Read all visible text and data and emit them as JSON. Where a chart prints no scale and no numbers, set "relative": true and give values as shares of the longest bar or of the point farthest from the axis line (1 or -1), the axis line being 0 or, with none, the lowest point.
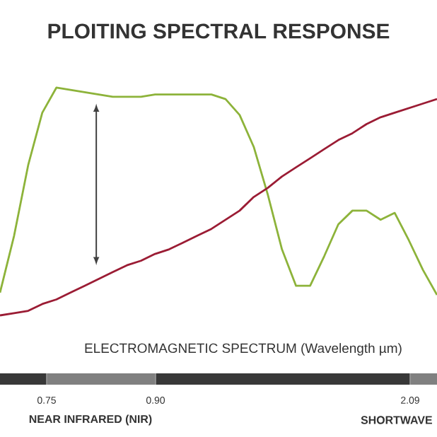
{
  "chart_data": {
    "type": "line",
    "relative": true,
    "title": "PLOITING SPECTRAL RESPONSE",
    "xlabel": "ELECTROMAGNETIC SPECTRUM (Wavelength µm)",
    "annotations": [
      "0.75",
      "0.90",
      "2.09",
      "NEAR INFRARED (NIR)",
      "SHORTWAVE"
    ],
    "categories": [
      null,
      null,
      null,
      null,
      null,
      null,
      null,
      null,
      null,
      null,
      null,
      null,
      null,
      null,
      null,
      null,
      null,
      null,
      null,
      null,
      null,
      null,
      null,
      null,
      null,
      null,
      null,
      null,
      null,
      null,
      null,
      null
    ],
    "series": [
      {
        "color": "#8db33a",
        "values": [
          0.1,
          0.35,
          0.66,
          0.89,
          1.0,
          0.99,
          0.98,
          0.97,
          0.96,
          0.96,
          0.96,
          0.97,
          0.97,
          0.97,
          0.97,
          0.97,
          0.95,
          0.88,
          0.74,
          0.53,
          0.29,
          0.13,
          0.13,
          0.26,
          0.4,
          0.46,
          0.46,
          0.42,
          0.45,
          0.33,
          0.2,
          0.09
        ]
      },
      {
        "color": "#9b1c34",
        "values": [
          0.0,
          0.01,
          0.02,
          0.05,
          0.07,
          0.1,
          0.13,
          0.16,
          0.19,
          0.22,
          0.24,
          0.27,
          0.29,
          0.32,
          0.35,
          0.38,
          0.42,
          0.46,
          0.52,
          0.56,
          0.61,
          0.65,
          0.69,
          0.73,
          0.77,
          0.8,
          0.84,
          0.87,
          0.89,
          0.91,
          0.93,
          0.95
        ]
      }
    ]
  }
}
